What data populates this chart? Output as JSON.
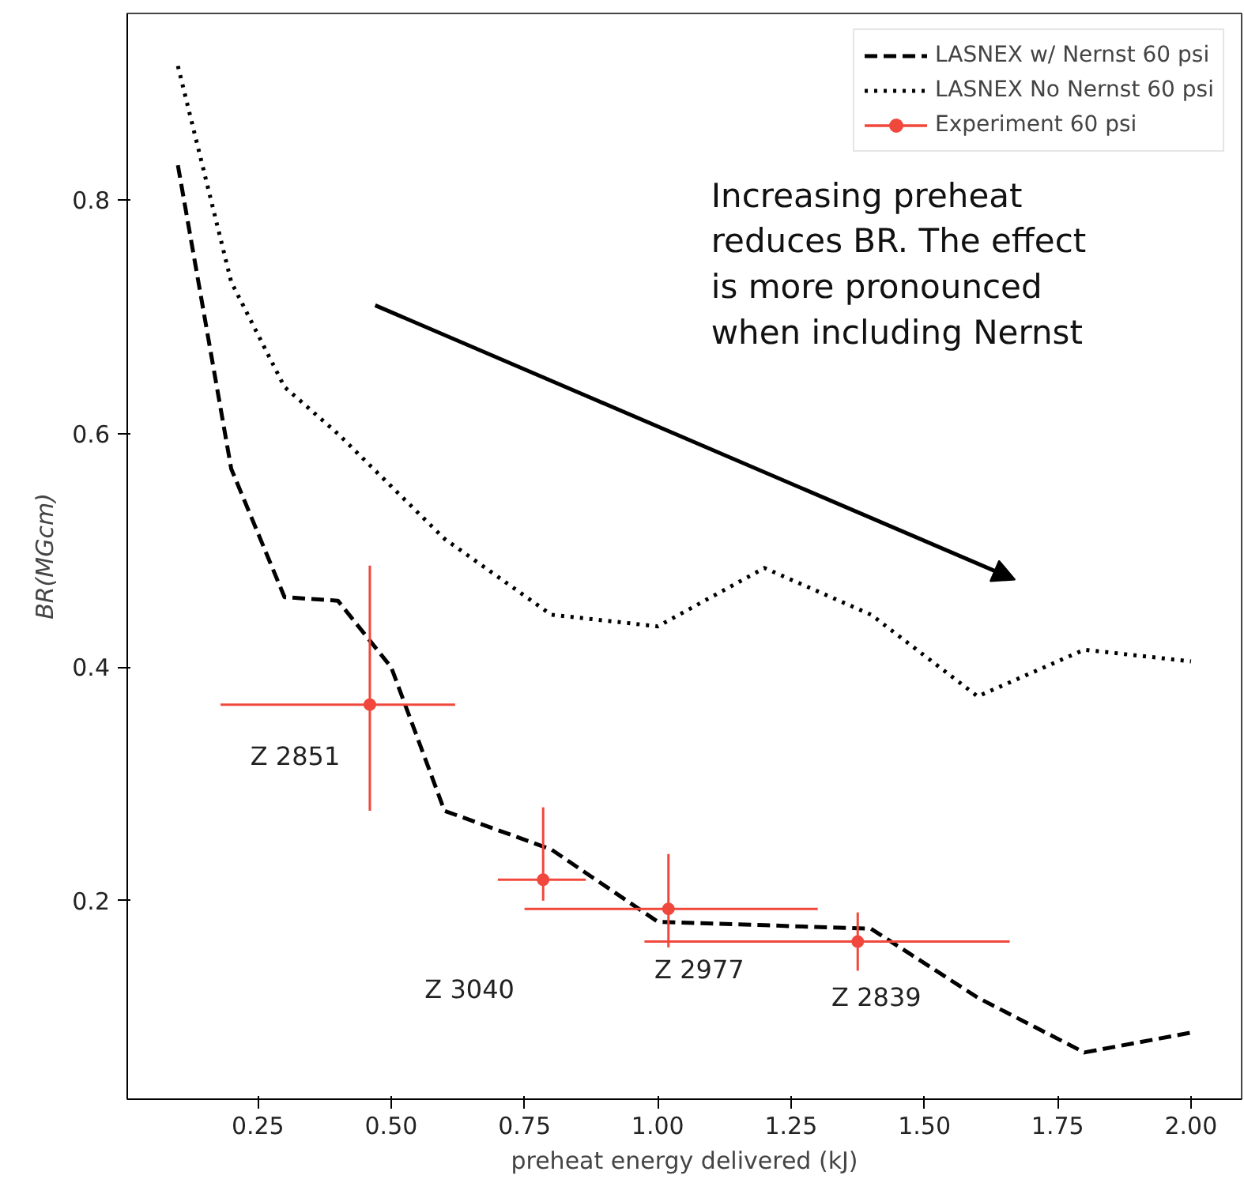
{
  "chart_data": {
    "type": "line",
    "xlabel": "preheat energy delivered (kJ)",
    "ylabel": "BR(MGcm)",
    "xlim": [
      0.005,
      2.095
    ],
    "ylim": [
      0.03,
      0.96
    ],
    "xticks": [
      {
        "value": 0.25,
        "label": "0.25"
      },
      {
        "value": 0.5,
        "label": "0.50"
      },
      {
        "value": 0.75,
        "label": "0.75"
      },
      {
        "value": 1.0,
        "label": "1.00"
      },
      {
        "value": 1.25,
        "label": "1.25"
      },
      {
        "value": 1.5,
        "label": "1.50"
      },
      {
        "value": 1.75,
        "label": "1.75"
      },
      {
        "value": 2.0,
        "label": "2.00"
      }
    ],
    "yticks": [
      0.2,
      0.4,
      0.6,
      0.8
    ],
    "grid": false,
    "legend": "top right",
    "series": [
      {
        "name": "LASNEX w/ Nernst 60 psi",
        "color": "#000000",
        "line_style": "dashed",
        "x": [
          0.1,
          0.2,
          0.3,
          0.4,
          0.5,
          0.6,
          0.8,
          1.0,
          1.2,
          1.4,
          1.6,
          1.8,
          2.0
        ],
        "values": [
          0.83,
          0.57,
          0.46,
          0.457,
          0.4,
          0.277,
          0.244,
          0.182,
          0.179,
          0.176,
          0.117,
          0.07,
          0.087
        ]
      },
      {
        "name": "LASNEX No Nernst 60 psi",
        "color": "#000000",
        "line_style": "dotted",
        "x": [
          0.1,
          0.2,
          0.3,
          0.4,
          0.5,
          0.6,
          0.8,
          1.0,
          1.2,
          1.4,
          1.6,
          1.8,
          2.0
        ],
        "values": [
          0.915,
          0.73,
          0.64,
          0.6,
          0.555,
          0.51,
          0.445,
          0.435,
          0.485,
          0.445,
          0.375,
          0.415,
          0.405
        ]
      },
      {
        "name": "Experiment 60 psi",
        "type": "scatter",
        "color": "#f0483c",
        "marker": "circle",
        "x": [
          0.46,
          0.785,
          1.02,
          1.375
        ],
        "values": [
          0.368,
          0.218,
          0.193,
          0.165
        ],
        "errors": [
          [
            0.277,
            0.487
          ],
          [
            0.2,
            0.28
          ],
          [
            0.16,
            0.24
          ],
          [
            0.14,
            0.19
          ]
        ],
        "xerrors": [
          [
            0.18,
            0.62
          ],
          [
            0.7,
            0.865
          ],
          [
            0.75,
            1.3
          ],
          [
            0.975,
            1.66
          ]
        ]
      }
    ],
    "annotations": [
      "Z 2851",
      "Z 3040",
      "Z 2977",
      "Z 2839",
      "Increasing preheat\nreduces BR. The effect\nis more pronounced\nwhen including Nernst"
    ]
  }
}
